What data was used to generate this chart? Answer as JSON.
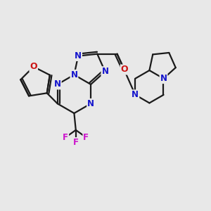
{
  "bg_color": "#e8e8e8",
  "bond_color": "#1a1a1a",
  "N_color": "#1414cc",
  "O_color": "#cc1414",
  "F_color": "#cc14cc",
  "line_width": 1.6,
  "font_size": 8.5,
  "fig_width": 3.0,
  "fig_height": 3.0,
  "dpi": 100,
  "xlim": [
    0,
    10
  ],
  "ylim": [
    0,
    10
  ]
}
